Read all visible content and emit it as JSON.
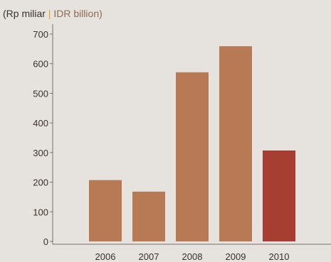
{
  "chart_data": {
    "type": "bar",
    "unit_label_id": "(Rp miliar",
    "unit_separator": "|",
    "unit_label_en": "IDR billion)",
    "categories": [
      "2006",
      "2007",
      "2008",
      "2009",
      "2010"
    ],
    "values": [
      207,
      168,
      571,
      659,
      307
    ],
    "ylim": [
      0,
      700
    ],
    "yticks": [
      0,
      100,
      200,
      300,
      400,
      500,
      600,
      700
    ],
    "grid": false,
    "colors": {
      "bar": "#b87a55",
      "bar_highlight": "#a63f32",
      "axis": "#7a6f68",
      "separator": "#e8a020",
      "unit_text_id": "#3a302c",
      "unit_text_en": "#8d6a50"
    },
    "highlight_index": 4
  }
}
